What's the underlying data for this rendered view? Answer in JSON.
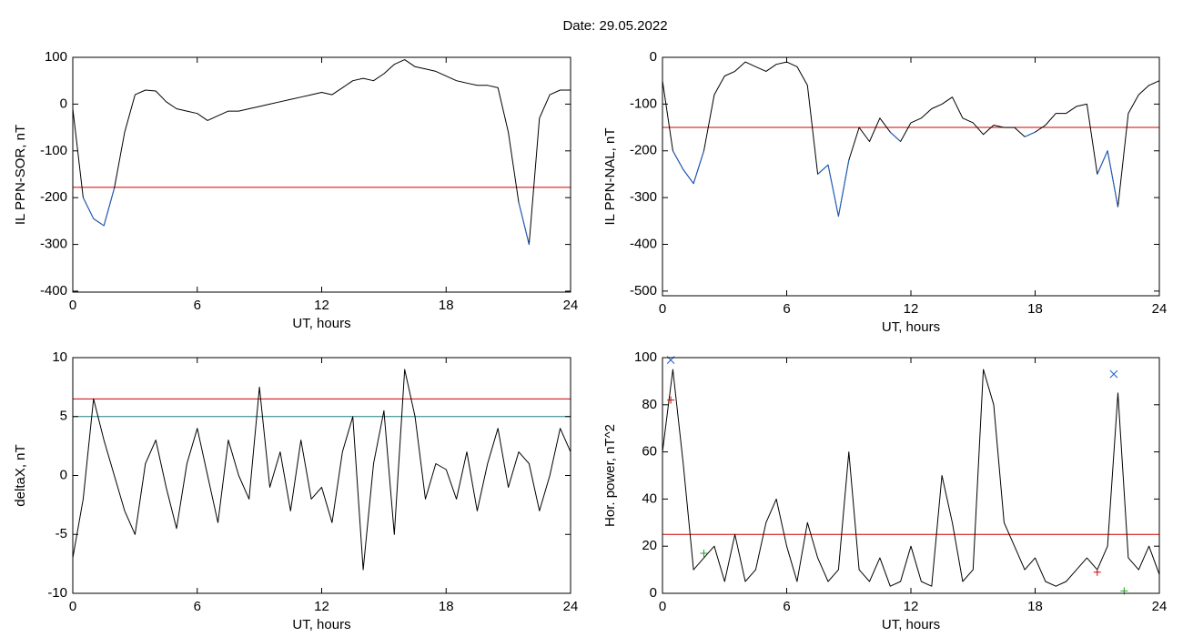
{
  "title": "Date:  29.05.2022",
  "chart_data": [
    {
      "type": "line",
      "xlabel": "UT, hours",
      "ylabel": "IL PPN-SOR, nT",
      "xlim": [
        0,
        24
      ],
      "xticks": [
        0,
        6,
        12,
        18,
        24
      ],
      "ylim": [
        -402,
        100
      ],
      "yticks": [
        100,
        0,
        -100,
        -200,
        -300,
        -400
      ],
      "x": [
        0,
        0.5,
        1,
        1.5,
        2,
        2.5,
        3,
        3.5,
        4,
        4.5,
        5,
        5.5,
        6,
        6.5,
        7,
        7.5,
        8,
        8.5,
        9,
        9.5,
        10,
        10.5,
        11,
        11.5,
        12,
        12.5,
        13,
        13.5,
        14,
        14.5,
        15,
        15.5,
        16,
        16.5,
        17,
        17.5,
        18,
        18.5,
        19,
        19.5,
        20,
        20.5,
        21,
        21.5,
        22,
        22.5,
        23,
        23.5,
        24
      ],
      "series": [
        {
          "color": "#000000",
          "values": [
            -10,
            -200,
            -245,
            -260,
            -180,
            -60,
            20,
            30,
            28,
            5,
            -10,
            -15,
            -20,
            -35,
            -25,
            -15,
            -15,
            -10,
            -5,
            0,
            5,
            10,
            15,
            20,
            25,
            20,
            35,
            50,
            55,
            50,
            65,
            85,
            95,
            80,
            75,
            70,
            60,
            50,
            45,
            40,
            40,
            35,
            -60,
            -210,
            -300,
            -30,
            20,
            30,
            30
          ]
        }
      ],
      "hlines": [
        {
          "value": -178,
          "color": "#d00000",
          "highlight_below": "#1f5fcc"
        }
      ]
    },
    {
      "type": "line",
      "xlabel": "UT, hours",
      "ylabel": "IL PPN-NAL, nT",
      "xlim": [
        0,
        24
      ],
      "xticks": [
        0,
        6,
        12,
        18,
        24
      ],
      "ylim": [
        -510,
        0
      ],
      "yticks": [
        0,
        -100,
        -200,
        -300,
        -400,
        -500
      ],
      "x": [
        0,
        0.5,
        1,
        1.5,
        2,
        2.5,
        3,
        3.5,
        4,
        4.5,
        5,
        5.5,
        6,
        6.5,
        7,
        7.5,
        8,
        8.5,
        9,
        9.5,
        10,
        10.5,
        11,
        11.5,
        12,
        12.5,
        13,
        13.5,
        14,
        14.5,
        15,
        15.5,
        16,
        16.5,
        17,
        17.5,
        18,
        18.5,
        19,
        19.5,
        20,
        20.5,
        21,
        21.5,
        22,
        22.5,
        23,
        23.5,
        24
      ],
      "series": [
        {
          "color": "#000000",
          "values": [
            -50,
            -200,
            -240,
            -270,
            -200,
            -80,
            -40,
            -30,
            -10,
            -20,
            -30,
            -15,
            -10,
            -20,
            -60,
            -250,
            -230,
            -340,
            -220,
            -150,
            -180,
            -130,
            -160,
            -180,
            -140,
            -130,
            -110,
            -100,
            -85,
            -130,
            -140,
            -165,
            -145,
            -150,
            -150,
            -170,
            -160,
            -145,
            -120,
            -120,
            -105,
            -100,
            -250,
            -200,
            -320,
            -120,
            -80,
            -60,
            -50
          ]
        }
      ],
      "hlines": [
        {
          "value": -150,
          "color": "#d00000",
          "highlight_below": "#1f5fcc"
        }
      ]
    },
    {
      "type": "line",
      "xlabel": "UT, hours",
      "ylabel": "deltaX, nT",
      "xlim": [
        0,
        24
      ],
      "xticks": [
        0,
        6,
        12,
        18,
        24
      ],
      "ylim": [
        -10,
        10
      ],
      "yticks": [
        10,
        5,
        0,
        -5,
        -10
      ],
      "x": [
        0,
        0.5,
        1,
        1.5,
        2,
        2.5,
        3,
        3.5,
        4,
        4.5,
        5,
        5.5,
        6,
        6.5,
        7,
        7.5,
        8,
        8.5,
        9,
        9.5,
        10,
        10.5,
        11,
        11.5,
        12,
        12.5,
        13,
        13.5,
        14,
        14.5,
        15,
        15.5,
        16,
        16.5,
        17,
        17.5,
        18,
        18.5,
        19,
        19.5,
        20,
        20.5,
        21,
        21.5,
        22,
        22.5,
        23,
        23.5,
        24
      ],
      "series": [
        {
          "color": "#000000",
          "values": [
            -7,
            -2,
            6.5,
            3,
            0,
            -3,
            -5,
            1,
            3,
            -1,
            -4.5,
            1,
            4,
            0,
            -4,
            3,
            0,
            -2,
            7.5,
            -1,
            2,
            -3,
            3,
            -2,
            -1,
            -4,
            2,
            5,
            -8,
            1,
            5.5,
            -5,
            9,
            5,
            -2,
            1,
            0.5,
            -2,
            2,
            -3,
            1,
            4,
            -1,
            2,
            1,
            -3,
            0,
            4,
            2
          ]
        }
      ],
      "hlines": [
        {
          "value": 6.5,
          "color": "#d00000"
        },
        {
          "value": 5,
          "color": "#208080"
        }
      ]
    },
    {
      "type": "line",
      "xlabel": "UT, hours",
      "ylabel": "Hor. power, nT^2",
      "xlim": [
        0,
        24
      ],
      "xticks": [
        0,
        6,
        12,
        18,
        24
      ],
      "ylim": [
        0,
        100
      ],
      "yticks": [
        100,
        80,
        60,
        40,
        20,
        0
      ],
      "x": [
        0,
        0.5,
        1,
        1.5,
        2,
        2.5,
        3,
        3.5,
        4,
        4.5,
        5,
        5.5,
        6,
        6.5,
        7,
        7.5,
        8,
        8.5,
        9,
        9.5,
        10,
        10.5,
        11,
        11.5,
        12,
        12.5,
        13,
        13.5,
        14,
        14.5,
        15,
        15.5,
        16,
        16.5,
        17,
        17.5,
        18,
        18.5,
        19,
        19.5,
        20,
        20.5,
        21,
        21.5,
        22,
        22.5,
        23,
        23.5,
        24
      ],
      "series": [
        {
          "color": "#000000",
          "values": [
            60,
            95,
            55,
            10,
            15,
            20,
            5,
            25,
            5,
            10,
            30,
            40,
            20,
            5,
            30,
            15,
            5,
            10,
            60,
            10,
            5,
            15,
            3,
            5,
            20,
            5,
            3,
            50,
            30,
            5,
            10,
            95,
            80,
            30,
            20,
            10,
            15,
            5,
            3,
            5,
            10,
            15,
            10,
            20,
            85,
            15,
            10,
            20,
            8
          ]
        }
      ],
      "hlines": [
        {
          "value": 25,
          "color": "#d00000"
        }
      ],
      "points": [
        {
          "x": 0.4,
          "y": 99,
          "symbol": "x",
          "color": "#1f5fcc"
        },
        {
          "x": 21.8,
          "y": 93,
          "symbol": "x",
          "color": "#1f5fcc"
        },
        {
          "x": 0.4,
          "y": 82,
          "symbol": "+",
          "color": "#d00000"
        },
        {
          "x": 21,
          "y": 9,
          "symbol": "+",
          "color": "#d00000"
        },
        {
          "x": 2,
          "y": 17,
          "symbol": "+",
          "color": "#20a020"
        },
        {
          "x": 22.3,
          "y": 1,
          "symbol": "+",
          "color": "#20a020"
        }
      ]
    }
  ]
}
